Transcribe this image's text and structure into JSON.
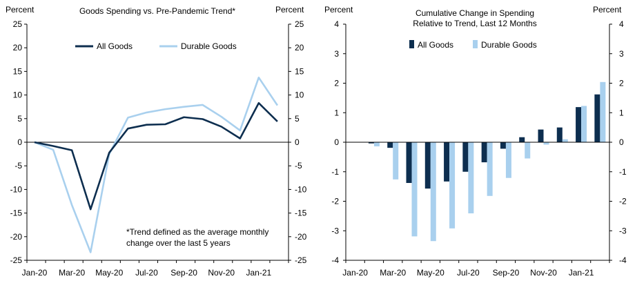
{
  "chart_data": [
    {
      "type": "line",
      "title": "Goods Spending vs. Pre-Pandemic Trend*",
      "left_axis_label": "Percent",
      "right_axis_label": "Percent",
      "ylim": [
        -25,
        25
      ],
      "yticks": [
        25,
        20,
        15,
        10,
        5,
        0,
        -5,
        -10,
        -15,
        -20,
        -25
      ],
      "xtick_labels": [
        "Jan-20",
        "Mar-20",
        "May-20",
        "Jul-20",
        "Sep-20",
        "Nov-20",
        "Jan-21"
      ],
      "note_lines": [
        "*Trend defined as the average monthly",
        "change over the last 5 years"
      ],
      "legend_position": "top-center",
      "series": [
        {
          "name": "All Goods",
          "color": "#0d2e4f",
          "values": [
            0.0,
            -0.8,
            -1.7,
            -14.2,
            -2.2,
            2.9,
            3.7,
            3.8,
            5.3,
            4.9,
            3.3,
            0.8,
            8.3,
            4.4
          ]
        },
        {
          "name": "Durable Goods",
          "color": "#a9d0ee",
          "values": [
            0.0,
            -1.6,
            -13.3,
            -23.3,
            -2.5,
            5.2,
            6.3,
            7.0,
            7.5,
            7.9,
            5.4,
            2.5,
            13.7,
            7.8
          ]
        }
      ]
    },
    {
      "type": "bar",
      "title_lines": [
        "Cumulative Change in Spending",
        "Relative to Trend, Last 12 Months"
      ],
      "left_axis_label": "Percent",
      "right_axis_label": "Percent",
      "ylim": [
        -4,
        4
      ],
      "yticks": [
        4,
        3,
        2,
        1,
        0,
        -1,
        -2,
        -3,
        -4
      ],
      "xtick_labels": [
        "Jan-20",
        "Mar-20",
        "May-20",
        "Jul-20",
        "Sep-20",
        "Nov-20",
        "Jan-21"
      ],
      "legend_position": "top-center",
      "series": [
        {
          "name": "All Goods",
          "color": "#0d2e4f",
          "values": [
            -0.04,
            -0.19,
            -1.38,
            -1.57,
            -1.33,
            -1.0,
            -0.68,
            -0.22,
            0.17,
            0.43,
            0.5,
            1.19,
            1.62
          ]
        },
        {
          "name": "Durable Goods",
          "color": "#a9d0ee",
          "values": [
            -0.14,
            -1.26,
            -3.19,
            -3.35,
            -2.92,
            -2.41,
            -1.82,
            -1.21,
            -0.55,
            -0.08,
            0.1,
            1.23,
            2.04
          ]
        }
      ]
    }
  ]
}
